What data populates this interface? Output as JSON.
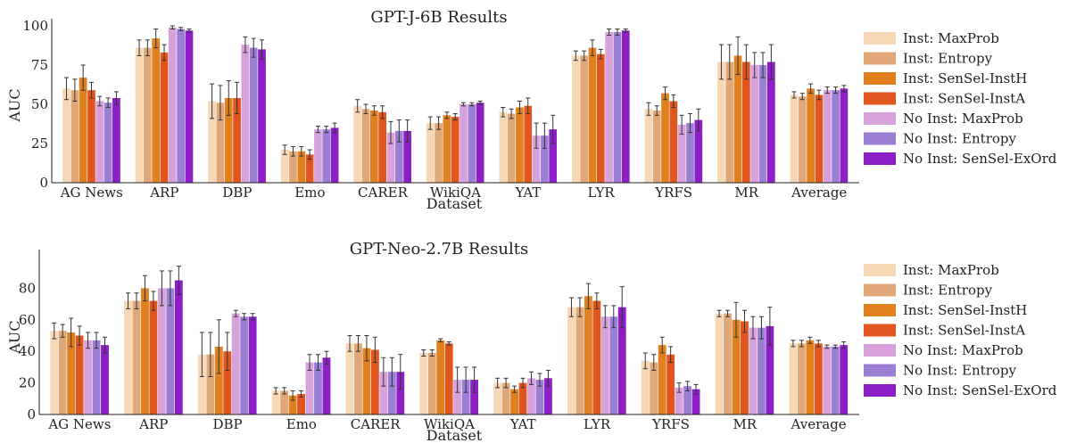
{
  "series_colors": [
    "#f6d7b6",
    "#e0a878",
    "#e0801e",
    "#e0561e",
    "#d7a2dc",
    "#9b7fd4",
    "#8c1fc6"
  ],
  "chart_data": [
    {
      "type": "bar",
      "title": "GPT-J-6B Results",
      "xlabel": "Dataset",
      "ylabel": "AUC",
      "ylim": [
        0,
        100
      ],
      "yticks": [
        0,
        25,
        50,
        75,
        100
      ],
      "grid": false,
      "legend": "right",
      "categories": [
        "AG News",
        "ARP",
        "DBP",
        "Emo",
        "CARER",
        "WikiQA",
        "YAT",
        "LYR",
        "YRFS",
        "MR",
        "Average"
      ],
      "series": [
        {
          "name": "Inst: MaxProb",
          "values": [
            60,
            86,
            52,
            21,
            49,
            38,
            45,
            81,
            47,
            77,
            56
          ],
          "err": [
            7,
            5,
            11,
            3,
            4,
            4,
            3,
            3,
            4,
            11,
            2
          ]
        },
        {
          "name": "Inst: Entropy",
          "values": [
            59,
            86,
            51,
            20,
            47,
            38,
            44,
            81,
            46,
            77,
            55
          ],
          "err": [
            7,
            5,
            11,
            3,
            3,
            4,
            3,
            3,
            3,
            11,
            2
          ]
        },
        {
          "name": "Inst: SenSel-InstH",
          "values": [
            67,
            92,
            54,
            20,
            46,
            43,
            48,
            86,
            57,
            81,
            60
          ],
          "err": [
            8,
            6,
            11,
            3,
            3,
            2,
            4,
            5,
            4,
            12,
            3
          ]
        },
        {
          "name": "Inst: SenSel-InstA",
          "values": [
            59,
            83,
            54,
            18,
            45,
            42,
            49,
            82,
            52,
            77,
            56
          ],
          "err": [
            5,
            5,
            10,
            3,
            4,
            2,
            5,
            3,
            4,
            11,
            3
          ]
        },
        {
          "name": "No Inst: MaxProb",
          "values": [
            52,
            99,
            88,
            34,
            32,
            50,
            30,
            96,
            37,
            75,
            59
          ],
          "err": [
            3,
            1,
            5,
            2,
            7,
            1,
            8,
            2,
            6,
            8,
            2
          ]
        },
        {
          "name": "No Inst: Entropy",
          "values": [
            51,
            98,
            86,
            34,
            33,
            50,
            30,
            96,
            38,
            75,
            59
          ],
          "err": [
            3,
            1,
            6,
            2,
            7,
            1,
            8,
            2,
            6,
            8,
            2
          ]
        },
        {
          "name": "No Inst: SenSel-ExOrd",
          "values": [
            54,
            97,
            85,
            35,
            33,
            51,
            34,
            97,
            40,
            77,
            60
          ],
          "err": [
            4,
            1,
            6,
            3,
            7,
            1,
            9,
            1,
            7,
            11,
            2
          ]
        }
      ]
    },
    {
      "type": "bar",
      "title": "GPT-Neo-2.7B Results",
      "xlabel": "Dataset",
      "ylabel": "AUC",
      "ylim": [
        0,
        100
      ],
      "yticks": [
        0,
        20,
        40,
        60,
        80
      ],
      "grid": false,
      "legend": "right",
      "categories": [
        "AG News",
        "ARP",
        "DBP",
        "Emo",
        "CARER",
        "WikiQA",
        "YAT",
        "LYR",
        "YRFS",
        "MR",
        "Average"
      ],
      "series": [
        {
          "name": "Inst: MaxProb",
          "values": [
            53,
            72,
            38,
            15,
            45,
            39,
            20,
            68,
            34,
            64,
            45
          ],
          "err": [
            5,
            5,
            14,
            2,
            5,
            2,
            3,
            6,
            5,
            2,
            2
          ]
        },
        {
          "name": "Inst: Entropy",
          "values": [
            53,
            72,
            38,
            15,
            45,
            39,
            20,
            68,
            33,
            64,
            45
          ],
          "err": [
            4,
            5,
            14,
            2,
            5,
            2,
            3,
            6,
            5,
            2,
            2
          ]
        },
        {
          "name": "Inst: SenSel-InstH",
          "values": [
            52,
            80,
            43,
            12,
            42,
            47,
            16,
            75,
            44,
            60,
            47
          ],
          "err": [
            9,
            8,
            17,
            3,
            8,
            1,
            2,
            8,
            5,
            11,
            2
          ]
        },
        {
          "name": "Inst: SenSel-InstA",
          "values": [
            50,
            72,
            40,
            13,
            41,
            45,
            20,
            72,
            38,
            59,
            45
          ],
          "err": [
            6,
            6,
            12,
            2,
            8,
            1,
            3,
            5,
            5,
            7,
            2
          ]
        },
        {
          "name": "No Inst: MaxProb",
          "values": [
            47,
            80,
            64,
            33,
            27,
            22,
            23,
            62,
            17,
            55,
            43
          ],
          "err": [
            5,
            11,
            2,
            5,
            9,
            8,
            4,
            7,
            3,
            7,
            1
          ]
        },
        {
          "name": "No Inst: Entropy",
          "values": [
            47,
            80,
            62,
            33,
            27,
            22,
            22,
            62,
            18,
            55,
            43
          ],
          "err": [
            5,
            11,
            2,
            5,
            9,
            8,
            4,
            7,
            3,
            7,
            1
          ]
        },
        {
          "name": "No Inst: SenSel-ExOrd",
          "values": [
            44,
            85,
            62,
            36,
            27,
            22,
            23,
            68,
            16,
            56,
            44
          ],
          "err": [
            5,
            9,
            2,
            4,
            11,
            8,
            5,
            13,
            3,
            12,
            2
          ]
        }
      ]
    }
  ]
}
